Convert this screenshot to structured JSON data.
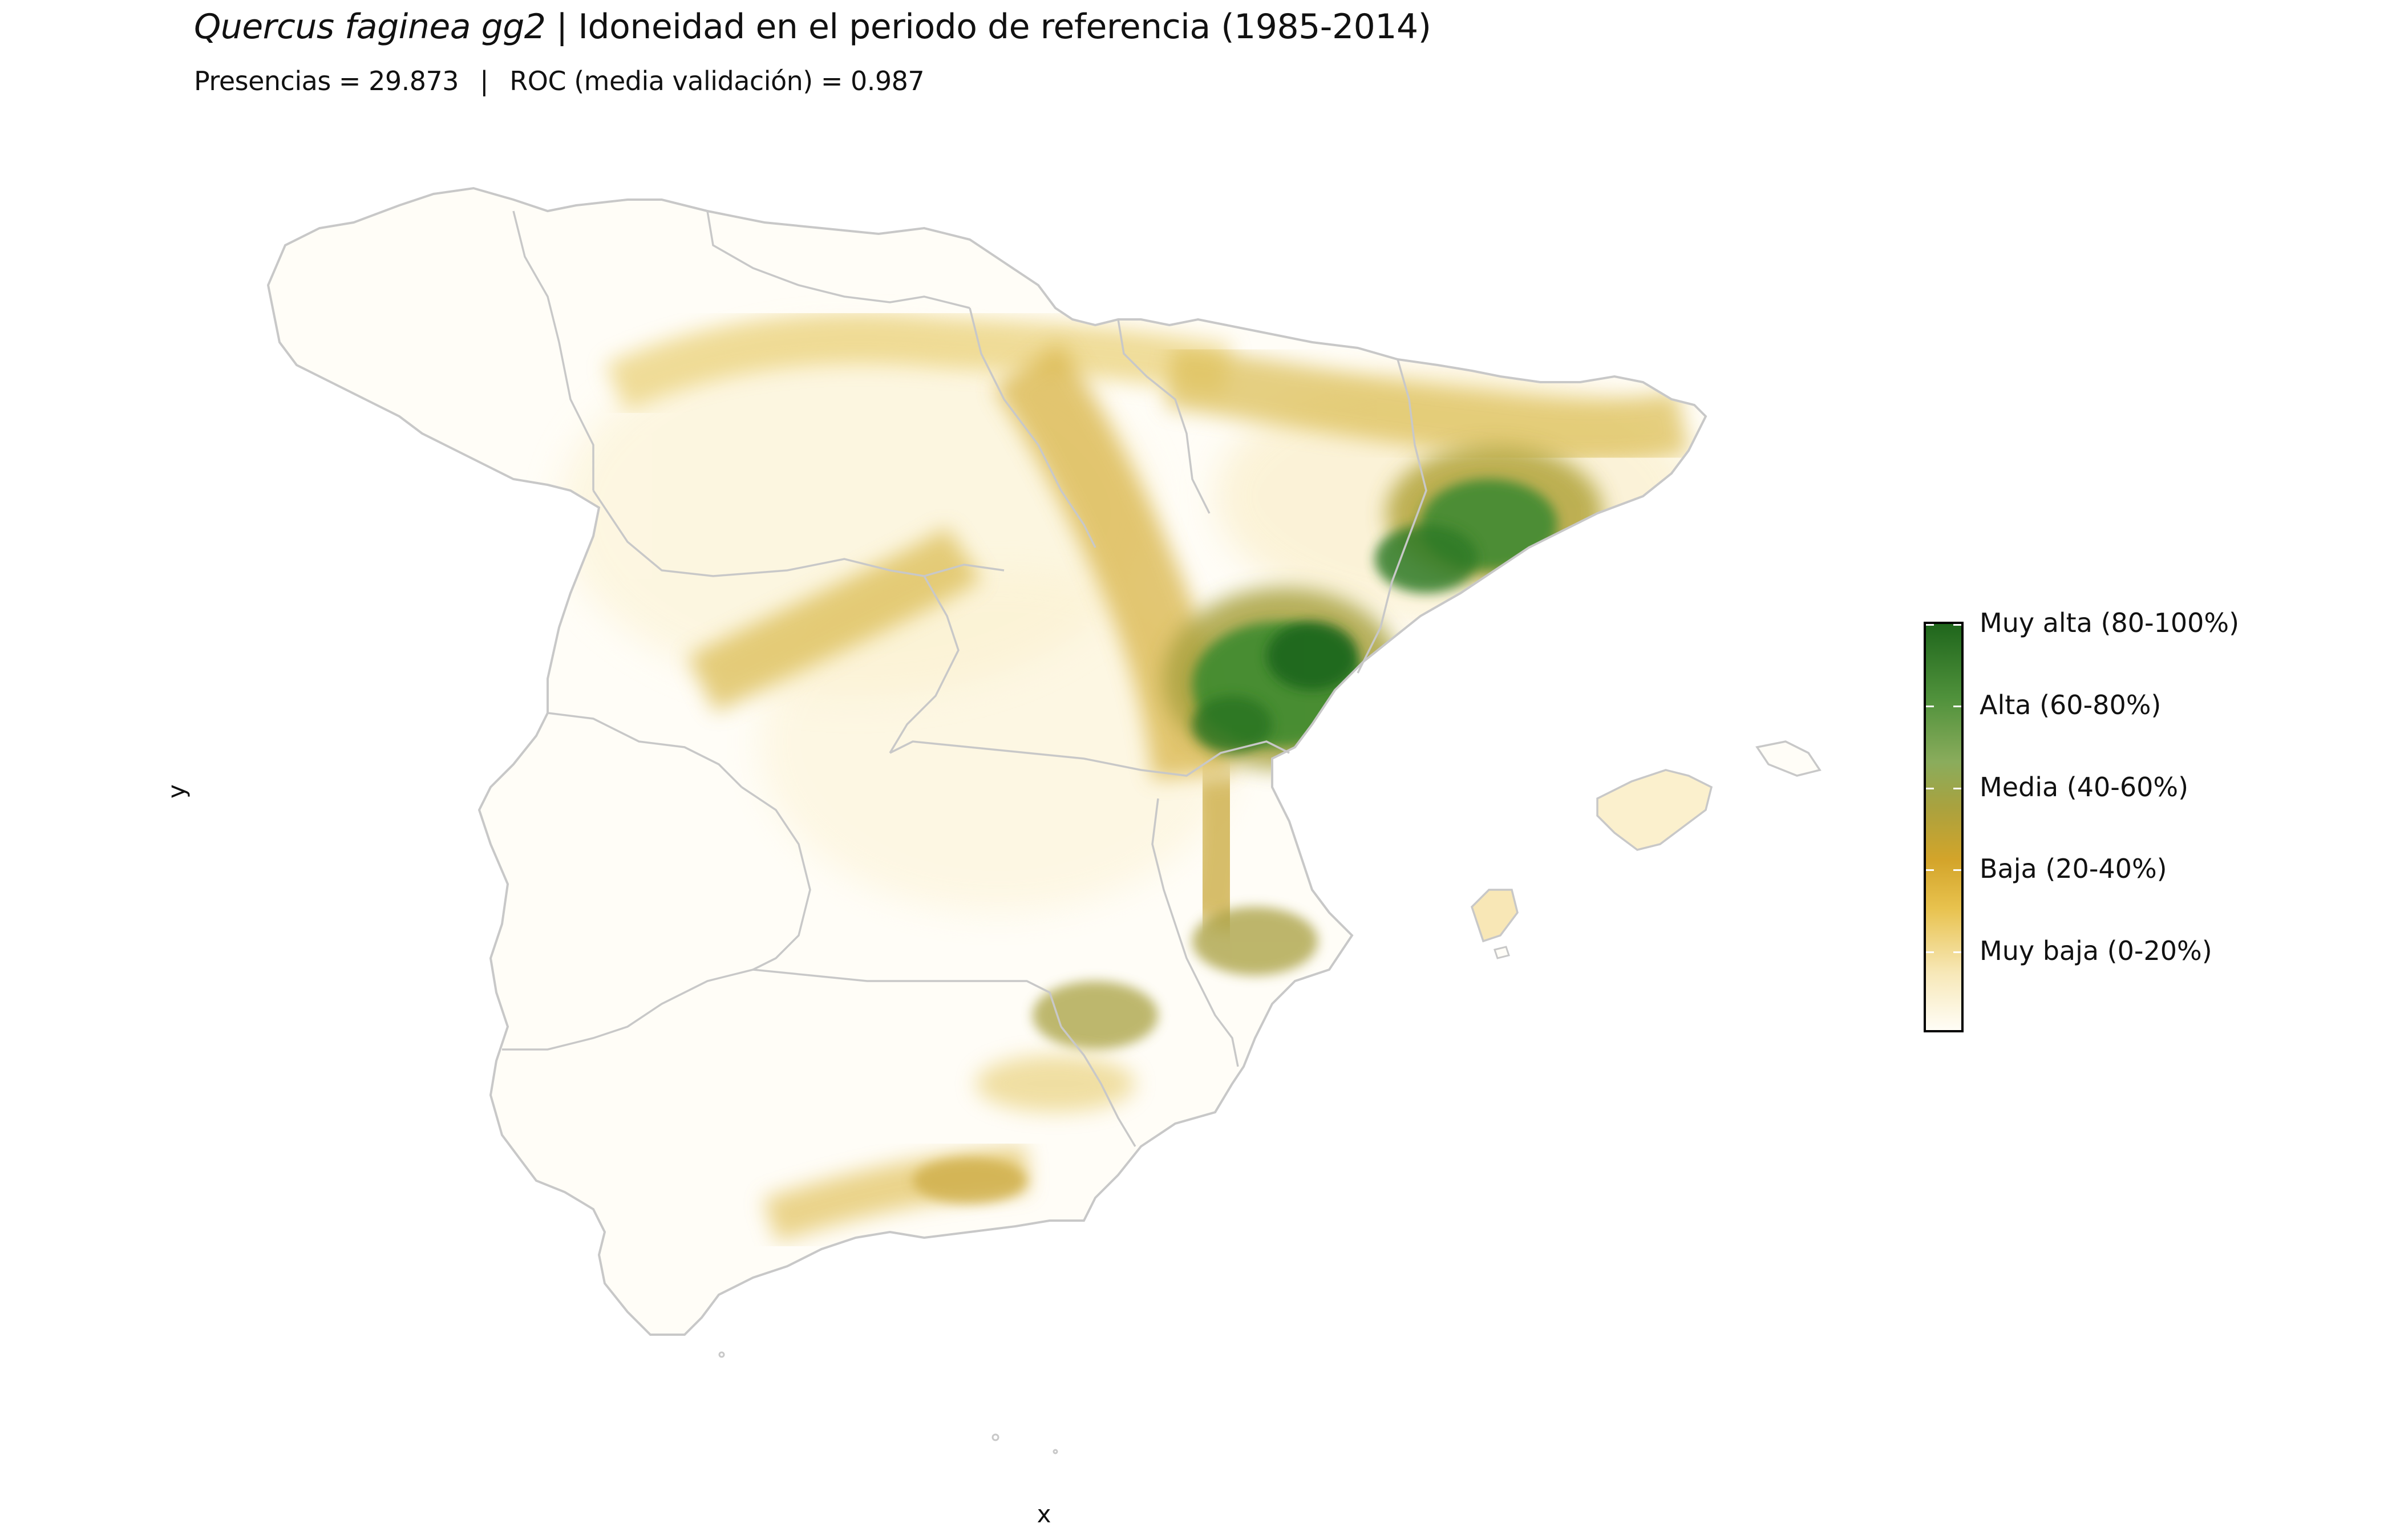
{
  "title": {
    "species": "Quercus faginea gg2",
    "rest": " | Idoneidad en el periodo de referencia (1985-2014)"
  },
  "subtitle": {
    "presencias": "Presencias = 29.873",
    "separator": "|",
    "roc": "ROC (media validación) = 0.987"
  },
  "axes": {
    "x": "x",
    "y": "y"
  },
  "legend": {
    "colors": [
      "#fffdf6",
      "#f7e8b8",
      "#e8c24e",
      "#d3a42a",
      "#a9a23f",
      "#8aac5c",
      "#4f913b",
      "#1f661c"
    ],
    "classes": [
      {
        "label": "Muy alta (80-100%)",
        "range": [
          80,
          100
        ]
      },
      {
        "label": "Alta (60-80%)",
        "range": [
          60,
          80
        ]
      },
      {
        "label": "Media (40-60%)",
        "range": [
          40,
          60
        ]
      },
      {
        "label": "Baja (20-40%)",
        "range": [
          20,
          40
        ]
      },
      {
        "label": "Muy baja (0-20%)",
        "range": [
          0,
          20
        ]
      }
    ]
  },
  "map": {
    "background": "#fffdf7",
    "border_color": "#c8c8c8"
  }
}
